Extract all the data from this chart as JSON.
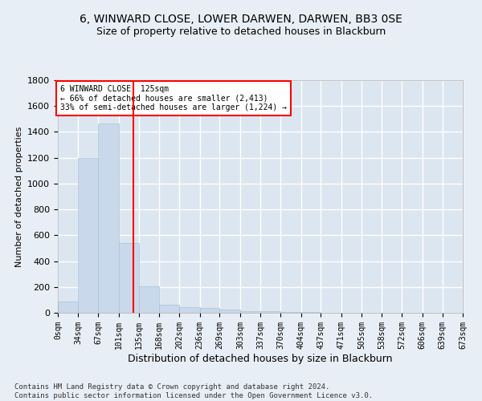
{
  "title": "6, WINWARD CLOSE, LOWER DARWEN, DARWEN, BB3 0SE",
  "subtitle": "Size of property relative to detached houses in Blackburn",
  "xlabel": "Distribution of detached houses by size in Blackburn",
  "ylabel": "Number of detached properties",
  "bar_color": "#c9d8ea",
  "bar_edge_color": "#a8c4d8",
  "background_color": "#dce6f0",
  "fig_background_color": "#e8eef5",
  "grid_color": "#ffffff",
  "annotation_text": "6 WINWARD CLOSE: 125sqm\n← 66% of detached houses are smaller (2,413)\n33% of semi-detached houses are larger (1,224) →",
  "property_size": 125,
  "red_line_x": 125,
  "bin_edges": [
    0,
    34,
    67,
    101,
    135,
    168,
    202,
    236,
    269,
    303,
    337,
    370,
    404,
    437,
    471,
    505,
    538,
    572,
    606,
    639,
    673
  ],
  "bar_heights": [
    90,
    1200,
    1465,
    540,
    205,
    65,
    45,
    35,
    25,
    10,
    10,
    5,
    5,
    2,
    2,
    1,
    1,
    0,
    0,
    0
  ],
  "tick_labels": [
    "0sqm",
    "34sqm",
    "67sqm",
    "101sqm",
    "135sqm",
    "168sqm",
    "202sqm",
    "236sqm",
    "269sqm",
    "303sqm",
    "337sqm",
    "370sqm",
    "404sqm",
    "437sqm",
    "471sqm",
    "505sqm",
    "538sqm",
    "572sqm",
    "606sqm",
    "639sqm",
    "673sqm"
  ],
  "ylim": [
    0,
    1800
  ],
  "footer_text": "Contains HM Land Registry data © Crown copyright and database right 2024.\nContains public sector information licensed under the Open Government Licence v3.0.",
  "title_fontsize": 10,
  "subtitle_fontsize": 9,
  "ylabel_fontsize": 8,
  "xlabel_fontsize": 9,
  "tick_fontsize": 7,
  "footer_fontsize": 6.5
}
